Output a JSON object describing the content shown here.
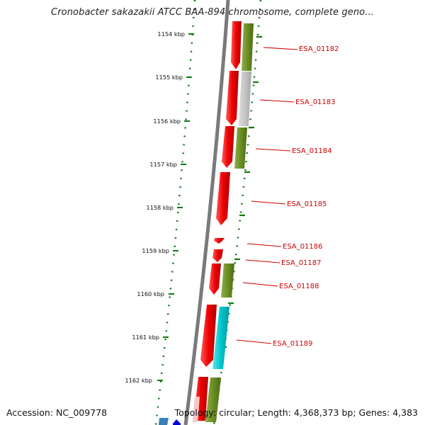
{
  "title": "Cronobacter sakazakii ATCC BAA-894 chromosome, complete geno...",
  "footer": {
    "accession": "Accession: NC_009778",
    "summary": "Topology: circular; Length: 4,368,373 bp; Genes: 4,383"
  },
  "ruler_ticks": [
    "1154 kbp",
    "1155 kbp",
    "1156 kbp",
    "1157 kbp",
    "1158 kbp",
    "1159 kbp",
    "1160 kbp",
    "1161 kbp",
    "1162 kbp"
  ],
  "gene_labels": [
    "ESA_01182",
    "ESA_01183",
    "ESA_01184",
    "ESA_01185",
    "ESA_01186",
    "ESA_01187",
    "ESA_01188",
    "ESA_01189"
  ],
  "colors": {
    "cds": "#ee0000",
    "olive": "#6b8e23",
    "gray": "#c0c0c0",
    "cyan": "#00c4cc",
    "tick": "#117a11",
    "label": "#cc0000",
    "backbone": "#7a7a7a"
  }
}
